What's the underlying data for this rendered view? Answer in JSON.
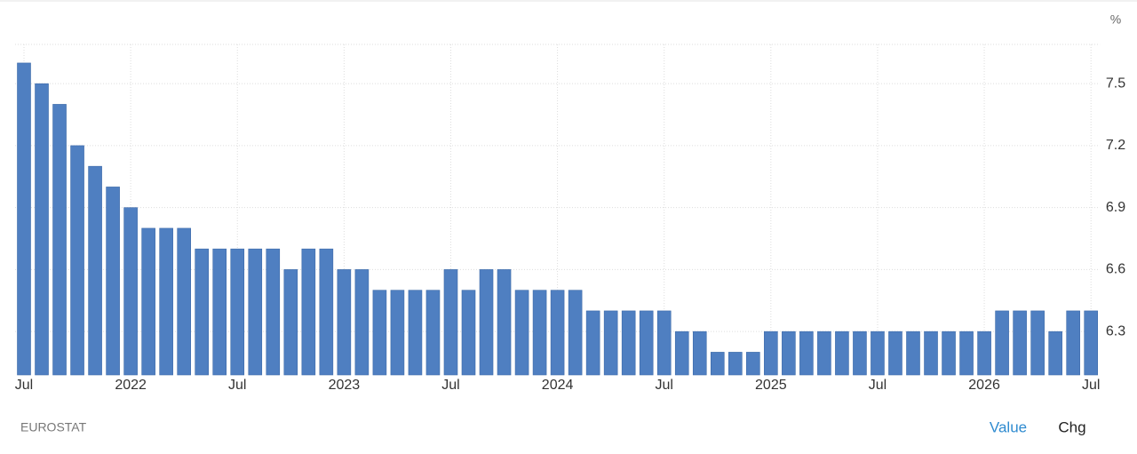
{
  "chart_data": {
    "type": "bar",
    "unit": "%",
    "categories": [
      "Jul",
      null,
      null,
      null,
      null,
      null,
      "2022",
      null,
      null,
      null,
      null,
      null,
      "Jul",
      null,
      null,
      null,
      null,
      null,
      "2023",
      null,
      null,
      null,
      null,
      null,
      "Jul",
      null,
      null,
      null,
      null,
      null,
      "2024",
      null,
      null,
      null,
      null,
      null,
      "Jul",
      null,
      null,
      null,
      null,
      null,
      "2025",
      null,
      null,
      null,
      null,
      null,
      "Jul",
      null,
      null,
      null,
      null,
      null,
      "2026",
      null,
      null,
      null,
      null,
      null,
      "Jul"
    ],
    "values": [
      7.6,
      7.5,
      7.4,
      7.2,
      7.1,
      7.0,
      6.9,
      6.8,
      6.8,
      6.8,
      6.7,
      6.7,
      6.7,
      6.7,
      6.7,
      6.6,
      6.7,
      6.7,
      6.6,
      6.6,
      6.5,
      6.5,
      6.5,
      6.5,
      6.6,
      6.5,
      6.6,
      6.6,
      6.5,
      6.5,
      6.5,
      6.5,
      6.4,
      6.4,
      6.4,
      6.4,
      6.4,
      6.3,
      6.3,
      6.2,
      6.2,
      6.2,
      6.3,
      6.3,
      6.3,
      6.3,
      6.3,
      6.3,
      6.3,
      6.3,
      6.3,
      6.3,
      6.3,
      6.3,
      6.3,
      6.4,
      6.4,
      6.4,
      6.3,
      6.4,
      6.4
    ],
    "color": "#4f7fc1",
    "ylim": [
      6.09,
      7.69
    ],
    "yticks": [
      6.3,
      6.6,
      6.9,
      7.2,
      7.5
    ],
    "grid": true,
    "source": "EUROSTAT"
  },
  "tabs": [
    "Value",
    "Chg"
  ]
}
